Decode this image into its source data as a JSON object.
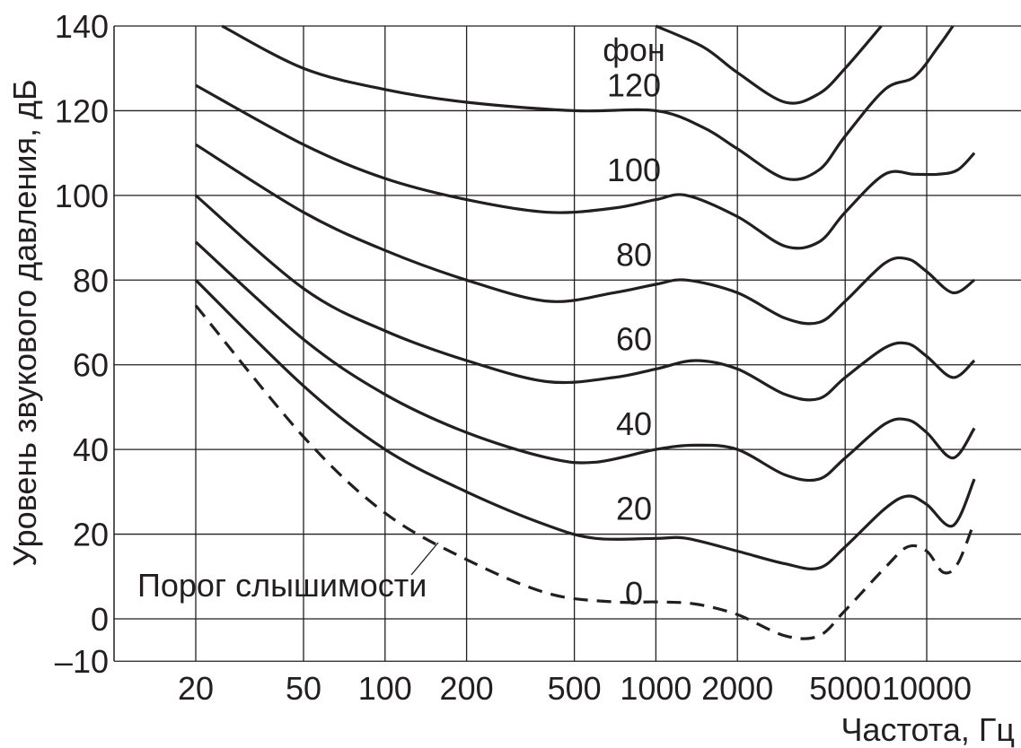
{
  "chart_data": {
    "type": "line",
    "title": "",
    "xlabel": "Частота, Гц",
    "ylabel": "Уровень звукового давления, дБ",
    "xscale": "log",
    "xlim": [
      20,
      15000
    ],
    "ylim": [
      -10,
      140
    ],
    "x_ticks": [
      {
        "value": 20,
        "label": "20"
      },
      {
        "value": 50,
        "label": "50"
      },
      {
        "value": 100,
        "label": "100"
      },
      {
        "value": 200,
        "label": "200"
      },
      {
        "value": 500,
        "label": "500"
      },
      {
        "value": 1000,
        "label": "1000"
      },
      {
        "value": 2000,
        "label": "2000"
      },
      {
        "value": 5000,
        "label": "5000"
      },
      {
        "value": 10000,
        "label": "10000"
      }
    ],
    "y_ticks": [
      {
        "value": 140,
        "label": "140"
      },
      {
        "value": 120,
        "label": "120"
      },
      {
        "value": 100,
        "label": "100"
      },
      {
        "value": 80,
        "label": "80"
      },
      {
        "value": 60,
        "label": "60"
      },
      {
        "value": 40,
        "label": "40"
      },
      {
        "value": 20,
        "label": "20"
      },
      {
        "value": 0,
        "label": "0"
      },
      {
        "value": -10,
        "label": "–10"
      }
    ],
    "grid": true,
    "unit_label": "фон",
    "series": [
      {
        "name": "120",
        "style": "solid",
        "label_at": [
          650,
          120
        ],
        "points": [
          [
            25,
            140
          ],
          [
            50,
            130
          ],
          [
            100,
            125
          ],
          [
            200,
            122
          ],
          [
            500,
            120
          ],
          [
            1000,
            120
          ],
          [
            1500,
            116
          ],
          [
            2000,
            111
          ],
          [
            3000,
            104
          ],
          [
            4000,
            106
          ],
          [
            5000,
            114
          ],
          [
            7000,
            125
          ],
          [
            9000,
            128
          ],
          [
            11000,
            135
          ],
          [
            12500,
            140
          ]
        ]
      },
      {
        "name": "100",
        "style": "solid",
        "label_at": [
          650,
          100
        ],
        "points": [
          [
            1000,
            140
          ],
          [
            1500,
            135
          ],
          [
            2000,
            129
          ],
          [
            3000,
            122
          ],
          [
            4000,
            124
          ],
          [
            5000,
            130
          ],
          [
            6800,
            140
          ]
        ]
      },
      {
        "name": "80",
        "style": "solid",
        "label_at": [
          650,
          80
        ],
        "points": [
          [
            20,
            126
          ],
          [
            50,
            112
          ],
          [
            100,
            104
          ],
          [
            200,
            99
          ],
          [
            400,
            96
          ],
          [
            700,
            97
          ],
          [
            1000,
            99
          ],
          [
            1300,
            100
          ],
          [
            2000,
            95
          ],
          [
            3000,
            88
          ],
          [
            4000,
            89
          ],
          [
            5000,
            96
          ],
          [
            7000,
            105
          ],
          [
            9000,
            105
          ],
          [
            11000,
            105
          ],
          [
            13000,
            106
          ],
          [
            15000,
            110
          ]
        ]
      },
      {
        "name": "60",
        "style": "solid",
        "label_at": [
          650,
          60
        ],
        "points": [
          [
            20,
            112
          ],
          [
            50,
            96
          ],
          [
            100,
            87
          ],
          [
            200,
            80
          ],
          [
            400,
            75
          ],
          [
            700,
            77
          ],
          [
            1000,
            79
          ],
          [
            1300,
            80
          ],
          [
            2000,
            77
          ],
          [
            3000,
            71
          ],
          [
            4000,
            70
          ],
          [
            5000,
            75
          ],
          [
            7000,
            84
          ],
          [
            8500,
            85
          ],
          [
            10000,
            82
          ],
          [
            12500,
            77
          ],
          [
            15000,
            80
          ]
        ]
      },
      {
        "name": "40",
        "style": "solid",
        "label_at": [
          650,
          40
        ],
        "points": [
          [
            20,
            100
          ],
          [
            50,
            78
          ],
          [
            100,
            68
          ],
          [
            200,
            61
          ],
          [
            400,
            56
          ],
          [
            700,
            57
          ],
          [
            1000,
            59
          ],
          [
            1400,
            61
          ],
          [
            2000,
            59
          ],
          [
            3000,
            53
          ],
          [
            4000,
            52
          ],
          [
            5000,
            57
          ],
          [
            7000,
            64
          ],
          [
            8500,
            65
          ],
          [
            10000,
            62
          ],
          [
            12500,
            57
          ],
          [
            15000,
            61
          ]
        ]
      },
      {
        "name": "20",
        "style": "solid",
        "label_at": [
          650,
          20
        ],
        "points": [
          [
            20,
            89
          ],
          [
            50,
            66
          ],
          [
            100,
            53
          ],
          [
            200,
            44
          ],
          [
            400,
            38
          ],
          [
            600,
            37
          ],
          [
            1000,
            40
          ],
          [
            1400,
            41
          ],
          [
            2000,
            40
          ],
          [
            3000,
            34
          ],
          [
            4000,
            33
          ],
          [
            5000,
            38
          ],
          [
            7000,
            46
          ],
          [
            8500,
            47
          ],
          [
            10000,
            44
          ],
          [
            12500,
            38
          ],
          [
            15000,
            45
          ]
        ]
      },
      {
        "name": "0",
        "style": "solid",
        "label_at": [
          650,
          0
        ],
        "points": [
          [
            20,
            80
          ],
          [
            50,
            55
          ],
          [
            100,
            40
          ],
          [
            200,
            30
          ],
          [
            400,
            22
          ],
          [
            600,
            19
          ],
          [
            1000,
            19
          ],
          [
            1300,
            19
          ],
          [
            2000,
            16
          ],
          [
            3000,
            13
          ],
          [
            4000,
            12
          ],
          [
            5000,
            17
          ],
          [
            7000,
            26
          ],
          [
            8500,
            29
          ],
          [
            10000,
            27
          ],
          [
            12500,
            22
          ],
          [
            15000,
            33
          ]
        ]
      },
      {
        "name": "Порог слышимости",
        "style": "dashed",
        "label_at": [
          21,
          7
        ],
        "points": [
          [
            20,
            74
          ],
          [
            50,
            43
          ],
          [
            100,
            25
          ],
          [
            200,
            14
          ],
          [
            400,
            6
          ],
          [
            700,
            4
          ],
          [
            1000,
            4
          ],
          [
            1400,
            3.5
          ],
          [
            2000,
            1
          ],
          [
            3000,
            -4
          ],
          [
            4000,
            -4
          ],
          [
            5000,
            2
          ],
          [
            7000,
            12
          ],
          [
            8500,
            17
          ],
          [
            10000,
            16
          ],
          [
            11500,
            11
          ],
          [
            13000,
            13
          ],
          [
            15000,
            23
          ]
        ]
      }
    ]
  }
}
